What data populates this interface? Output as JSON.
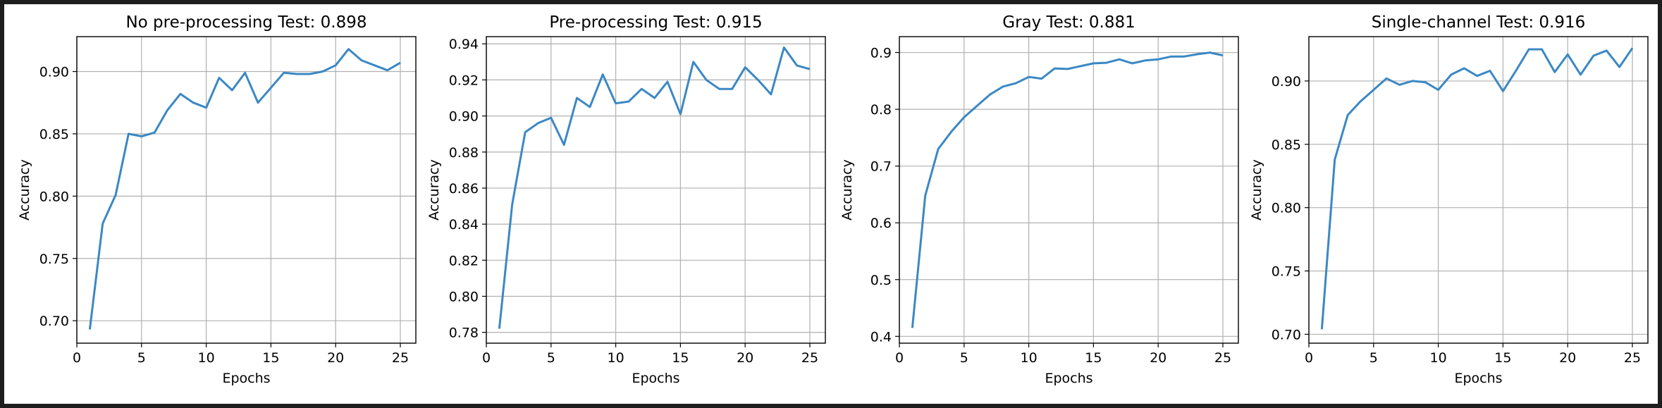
{
  "chart_data": [
    {
      "type": "line",
      "title": "No pre-processing Test: 0.898",
      "xlabel": "Epochs",
      "ylabel": "Accuracy",
      "xlim": [
        0,
        26.2
      ],
      "ylim": [
        0.682,
        0.928
      ],
      "xticks": [
        0,
        5,
        10,
        15,
        20,
        25
      ],
      "yticks": [
        0.7,
        0.75,
        0.8,
        0.85,
        0.9
      ],
      "ytick_labels": [
        "0.70",
        "0.75",
        "0.80",
        "0.85",
        "0.90"
      ],
      "grid": true,
      "color": "#3b88c4",
      "x": [
        1,
        2,
        3,
        4,
        5,
        6,
        7,
        8,
        9,
        10,
        11,
        12,
        13,
        14,
        15,
        16,
        17,
        18,
        19,
        20,
        21,
        22,
        23,
        24,
        25
      ],
      "y": [
        0.693,
        0.778,
        0.801,
        0.85,
        0.848,
        0.851,
        0.869,
        0.882,
        0.875,
        0.871,
        0.895,
        0.885,
        0.899,
        0.875,
        0.887,
        0.899,
        0.898,
        0.898,
        0.9,
        0.905,
        0.918,
        0.909,
        0.905,
        0.901,
        0.907
      ]
    },
    {
      "type": "line",
      "title": "Pre-processing Test: 0.915",
      "xlabel": "Epochs",
      "ylabel": "Accuracy",
      "xlim": [
        0,
        26.2
      ],
      "ylim": [
        0.774,
        0.944
      ],
      "xticks": [
        0,
        5,
        10,
        15,
        20,
        25
      ],
      "yticks": [
        0.78,
        0.8,
        0.82,
        0.84,
        0.86,
        0.88,
        0.9,
        0.92,
        0.94
      ],
      "ytick_labels": [
        "0.78",
        "0.80",
        "0.82",
        "0.84",
        "0.86",
        "0.88",
        "0.90",
        "0.92",
        "0.94"
      ],
      "grid": true,
      "color": "#3b88c4",
      "x": [
        1,
        2,
        3,
        4,
        5,
        6,
        7,
        8,
        9,
        10,
        11,
        12,
        13,
        14,
        15,
        16,
        17,
        18,
        19,
        20,
        21,
        22,
        23,
        24,
        25
      ],
      "y": [
        0.782,
        0.851,
        0.891,
        0.896,
        0.899,
        0.884,
        0.91,
        0.905,
        0.923,
        0.907,
        0.908,
        0.915,
        0.91,
        0.919,
        0.901,
        0.93,
        0.92,
        0.915,
        0.915,
        0.927,
        0.92,
        0.912,
        0.938,
        0.928,
        0.926
      ]
    },
    {
      "type": "line",
      "title": "Gray Test: 0.881",
      "xlabel": "Epochs",
      "ylabel": "Accuracy",
      "xlim": [
        0,
        26.2
      ],
      "ylim": [
        0.388,
        0.928
      ],
      "xticks": [
        0,
        5,
        10,
        15,
        20,
        25
      ],
      "yticks": [
        0.4,
        0.5,
        0.6,
        0.7,
        0.8,
        0.9
      ],
      "ytick_labels": [
        "0.4",
        "0.5",
        "0.6",
        "0.7",
        "0.8",
        "0.9"
      ],
      "grid": true,
      "color": "#3b88c4",
      "x": [
        1,
        2,
        3,
        4,
        5,
        6,
        7,
        8,
        9,
        10,
        11,
        12,
        13,
        14,
        15,
        16,
        17,
        18,
        19,
        20,
        21,
        22,
        23,
        24,
        25
      ],
      "y": [
        0.415,
        0.648,
        0.73,
        0.76,
        0.786,
        0.806,
        0.826,
        0.84,
        0.846,
        0.857,
        0.854,
        0.872,
        0.871,
        0.876,
        0.881,
        0.882,
        0.888,
        0.881,
        0.886,
        0.888,
        0.893,
        0.893,
        0.897,
        0.9,
        0.895
      ]
    },
    {
      "type": "line",
      "title": "Single-channel Test: 0.916",
      "xlabel": "Epochs",
      "ylabel": "Accuracy",
      "xlim": [
        0,
        26.2
      ],
      "ylim": [
        0.693,
        0.935
      ],
      "xticks": [
        0,
        5,
        10,
        15,
        20,
        25
      ],
      "yticks": [
        0.7,
        0.75,
        0.8,
        0.85,
        0.9
      ],
      "ytick_labels": [
        "0.70",
        "0.75",
        "0.80",
        "0.85",
        "0.90"
      ],
      "grid": true,
      "color": "#3b88c4",
      "x": [
        1,
        2,
        3,
        4,
        5,
        6,
        7,
        8,
        9,
        10,
        11,
        12,
        13,
        14,
        15,
        16,
        17,
        18,
        19,
        20,
        21,
        22,
        23,
        24,
        25
      ],
      "y": [
        0.704,
        0.838,
        0.873,
        0.884,
        0.893,
        0.902,
        0.897,
        0.9,
        0.899,
        0.893,
        0.905,
        0.91,
        0.904,
        0.908,
        0.892,
        0.908,
        0.925,
        0.925,
        0.907,
        0.921,
        0.905,
        0.92,
        0.924,
        0.911,
        0.926
      ]
    }
  ]
}
